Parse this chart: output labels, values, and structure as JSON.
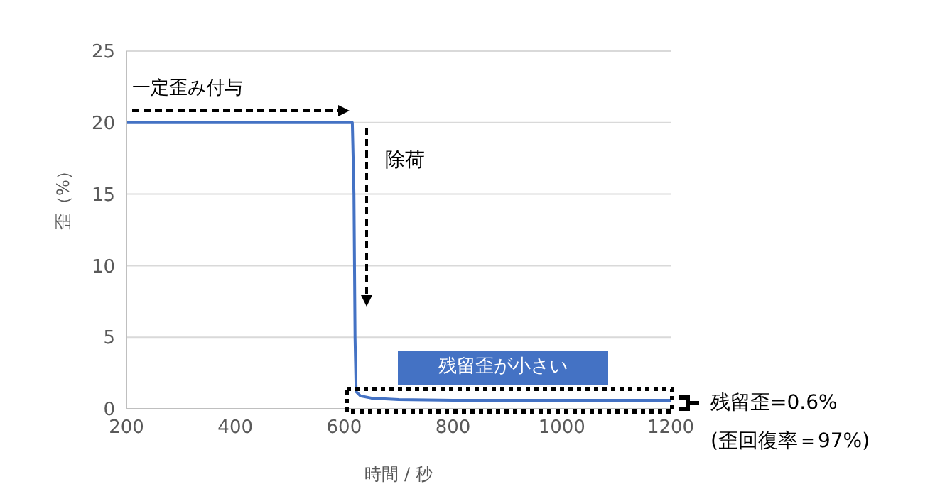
{
  "chart_data": {
    "type": "line",
    "xlabel": "時間 / 秒",
    "ylabel": "歪（%）",
    "x": [
      200,
      615,
      618,
      620,
      622,
      630,
      650,
      700,
      800,
      1200
    ],
    "series": [
      {
        "color": "#4472c4",
        "values": [
          20,
          20,
          15,
          5,
          1.2,
          0.9,
          0.75,
          0.65,
          0.6,
          0.6
        ]
      }
    ],
    "xlim": [
      200,
      1200
    ],
    "xticks": [
      200,
      400,
      600,
      800,
      1000,
      1200
    ],
    "ylim": [
      0,
      25
    ],
    "yticks": [
      0,
      5,
      10,
      15,
      20,
      25
    ],
    "grid": "y",
    "marker": "none",
    "line_style": "solid",
    "annotations": [
      "一定歪み付与",
      "除荷",
      "残留歪が小さい",
      "残留歪=0.6%",
      "(歪回復率＝97%)"
    ]
  }
}
